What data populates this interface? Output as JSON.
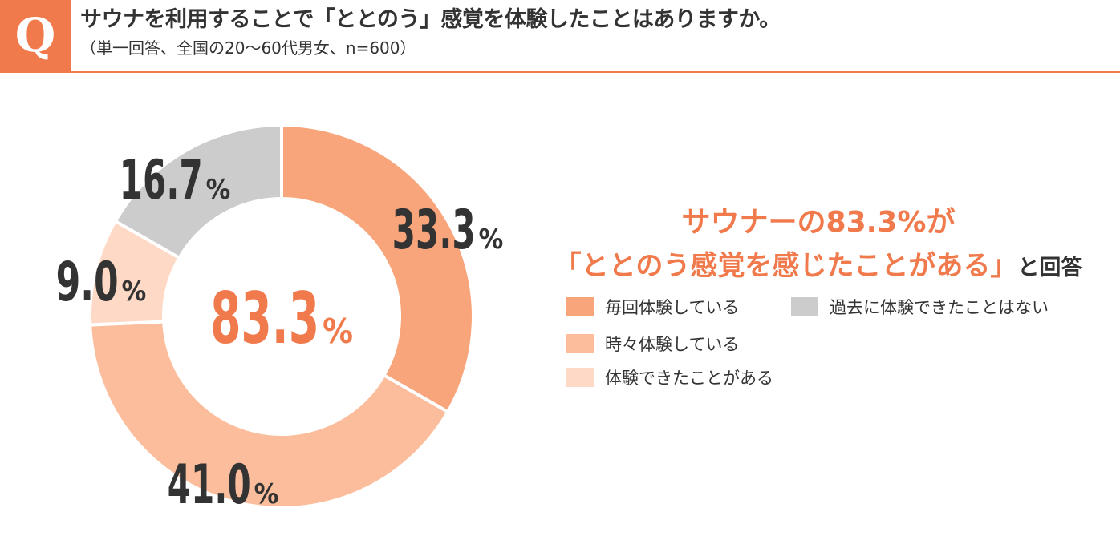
{
  "header": {
    "badge_letter": "Q",
    "title": "サウナを利用することで「ととのう」感覚を体験したことはありますか。",
    "subtitle": "（単一回答、全国の20〜60代男女、n=600）"
  },
  "colors": {
    "accent": "#f07a4c",
    "every_time": "#f9a57b",
    "sometimes": "#fbbd9b",
    "have_experienced": "#fdd9c6",
    "never": "#cccccc",
    "dark_text": "#333333"
  },
  "chart_data": {
    "type": "pie",
    "variant": "donut",
    "series": [
      {
        "name": "毎回体験している",
        "value": 33.3,
        "label": "33.3",
        "unit": "%"
      },
      {
        "name": "時々体験している",
        "value": 41.0,
        "label": "41.0",
        "unit": "%"
      },
      {
        "name": "体験できたことがある",
        "value": 9.0,
        "label": "9.0",
        "unit": "%"
      },
      {
        "name": "過去に体験できたことはない",
        "value": 16.7,
        "label": "16.7",
        "unit": "%"
      }
    ],
    "center_label": {
      "value": "83.3",
      "unit": "%"
    },
    "legend_position": "right"
  },
  "headline": {
    "line1": "サウナーの83.3%が",
    "line2_quote": "「ととのう感覚を感じたことがある」",
    "line2_suffix": "と回答"
  }
}
